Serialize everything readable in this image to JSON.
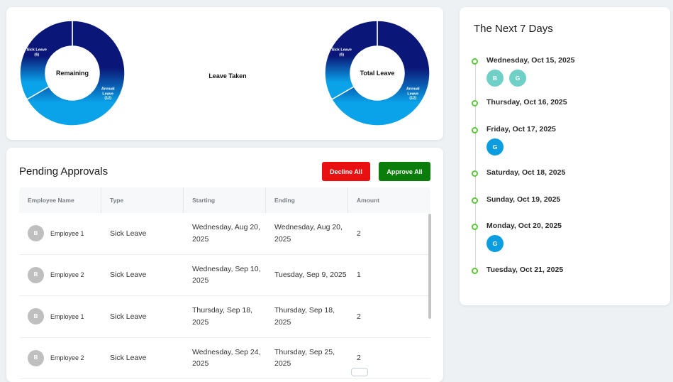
{
  "leave_charts": {
    "remaining": {
      "center_label": "Remaining",
      "segments": [
        {
          "label": "Sick Leave",
          "count": "(6)",
          "value": 6
        },
        {
          "label": "Annual Leave",
          "count": "(12)",
          "value": 12
        }
      ]
    },
    "taken": {
      "label": "Leave Taken"
    },
    "total": {
      "center_label": "Total Leave",
      "segments": [
        {
          "label": "Sick Leave",
          "count": "(6)",
          "value": 6
        },
        {
          "label": "Annual Leave",
          "count": "(12)",
          "value": 12
        }
      ]
    },
    "colors": {
      "dark": "#0a1778",
      "light": "#0aa2e8"
    }
  },
  "pending": {
    "title": "Pending Approvals",
    "decline_label": "Decline All",
    "approve_label": "Approve All",
    "columns": [
      "Employee Name",
      "Type",
      "Starting",
      "Ending",
      "Amount"
    ],
    "rows": [
      {
        "initial": "B",
        "name": "Employee 1",
        "type": "Sick Leave",
        "start": "Wednesday, Aug 20, 2025",
        "end": "Wednesday, Aug 20, 2025",
        "amount": "2"
      },
      {
        "initial": "B",
        "name": "Employee 2",
        "type": "Sick Leave",
        "start": "Wednesday, Sep 10, 2025",
        "end": "Tuesday, Sep 9, 2025",
        "amount": "1"
      },
      {
        "initial": "B",
        "name": "Employee 1",
        "type": "Sick Leave",
        "start": "Thursday, Sep 18, 2025",
        "end": "Thursday, Sep 18, 2025",
        "amount": "2"
      },
      {
        "initial": "B",
        "name": "Employee 2",
        "type": "Sick Leave",
        "start": "Wednesday, Sep 24, 2025",
        "end": "Thursday, Sep 25, 2025",
        "amount": "2"
      }
    ]
  },
  "next_days": {
    "title": "The Next 7 Days",
    "days": [
      {
        "date": "Wednesday, Oct 15, 2025",
        "avatars": [
          {
            "initial": "B",
            "color": "#6fd0c8"
          },
          {
            "initial": "G",
            "color": "#6fd0c8"
          }
        ]
      },
      {
        "date": "Thursday, Oct 16, 2025",
        "avatars": []
      },
      {
        "date": "Friday, Oct 17, 2025",
        "avatars": [
          {
            "initial": "G",
            "color": "#0a9de0"
          }
        ]
      },
      {
        "date": "Saturday, Oct 18, 2025",
        "avatars": []
      },
      {
        "date": "Sunday, Oct 19, 2025",
        "avatars": []
      },
      {
        "date": "Monday, Oct 20, 2025",
        "avatars": [
          {
            "initial": "G",
            "color": "#0a9de0"
          }
        ]
      },
      {
        "date": "Tuesday, Oct 21, 2025",
        "avatars": []
      }
    ],
    "dot_color": "#5cc73a"
  }
}
